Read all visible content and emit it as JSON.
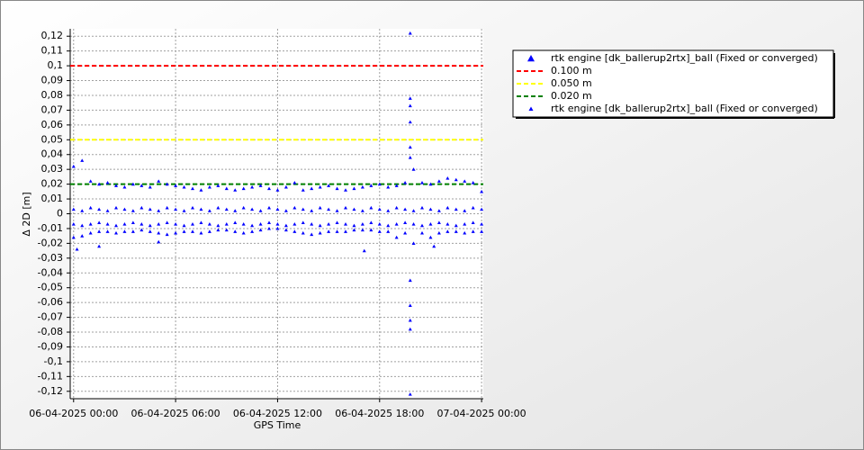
{
  "chart_data": {
    "type": "scatter",
    "xlabel": "GPS Time",
    "ylabel": "Δ 2D [m]",
    "xlim": [
      -0.2,
      24.1
    ],
    "ylim": [
      -0.125,
      0.125
    ],
    "xticks": [
      {
        "value": 0,
        "label": "06-04-2025 00:00"
      },
      {
        "value": 6,
        "label": "06-04-2025 06:00"
      },
      {
        "value": 12,
        "label": "06-04-2025 12:00"
      },
      {
        "value": 18,
        "label": "06-04-2025 18:00"
      },
      {
        "value": 24,
        "label": "07-04-2025 00:00"
      }
    ],
    "yticks": [
      {
        "value": -0.12,
        "label": "-0,12"
      },
      {
        "value": -0.11,
        "label": "-0,11"
      },
      {
        "value": -0.1,
        "label": "-0,1"
      },
      {
        "value": -0.09,
        "label": "-0,09"
      },
      {
        "value": -0.08,
        "label": "-0,08"
      },
      {
        "value": -0.07,
        "label": "-0,07"
      },
      {
        "value": -0.06,
        "label": "-0,06"
      },
      {
        "value": -0.05,
        "label": "-0,05"
      },
      {
        "value": -0.04,
        "label": "-0,04"
      },
      {
        "value": -0.03,
        "label": "-0,03"
      },
      {
        "value": -0.02,
        "label": "-0,02"
      },
      {
        "value": -0.01,
        "label": "-0,01"
      },
      0,
      {
        "value": 0.01,
        "label": "0,01"
      },
      {
        "value": 0.02,
        "label": "0,02"
      },
      {
        "value": 0.03,
        "label": "0,03"
      },
      {
        "value": 0.04,
        "label": "0,04"
      },
      {
        "value": 0.05,
        "label": "0,05"
      },
      {
        "value": 0.06,
        "label": "0,06"
      },
      {
        "value": 0.07,
        "label": "0,07"
      },
      {
        "value": 0.08,
        "label": "0,08"
      },
      {
        "value": 0.09,
        "label": "0,09"
      },
      {
        "value": 0.1,
        "label": "0,1"
      },
      {
        "value": 0.11,
        "label": "0,11"
      },
      {
        "value": 0.12,
        "label": "0,12"
      }
    ],
    "grid": true,
    "series": [
      {
        "name": "rtk engine [dk_ballerup2rtx]_ball (Fixed or converged)",
        "color": "#0000ff",
        "x": [
          0,
          0,
          0.5,
          0.5,
          1,
          1,
          1.5,
          1.5,
          2,
          2,
          2.5,
          2.5,
          3,
          3,
          3.5,
          3.5,
          4,
          4,
          4.5,
          4.5,
          5,
          5,
          5.5,
          5.5,
          6,
          6,
          6.5,
          6.5,
          7,
          7,
          7.5,
          7.5,
          8,
          8,
          8.5,
          8.5,
          9,
          9,
          9.5,
          9.5,
          10,
          10,
          10.5,
          10.5,
          11,
          11,
          11.5,
          11.5,
          12,
          12,
          12.5,
          12.5,
          13,
          13,
          13.5,
          13.5,
          14,
          14,
          14.5,
          14.5,
          15,
          15,
          15.5,
          15.5,
          16,
          16,
          16.5,
          16.5,
          17,
          17,
          17.5,
          17.5,
          18,
          18,
          18.5,
          18.5,
          19,
          19,
          19.5,
          19.5,
          20,
          20,
          20.5,
          20.5,
          21,
          21,
          21.5,
          21.5,
          22,
          22,
          22.5,
          22.5,
          23,
          23,
          23.5,
          23.5,
          24,
          24,
          19.8,
          19.8,
          19.8,
          19.8,
          19.8,
          19.8
        ],
        "values": [
          0.032,
          0.003,
          0.036,
          0.002,
          0.022,
          0.004,
          0.02,
          0.003,
          0.021,
          0.002,
          0.019,
          0.004,
          0.018,
          0.003,
          0.02,
          0.002,
          0.019,
          0.004,
          0.018,
          0.003,
          0.022,
          0.002,
          0.02,
          0.004,
          0.019,
          0.003,
          0.018,
          0.002,
          0.017,
          0.004,
          0.016,
          0.003,
          0.018,
          0.002,
          0.019,
          0.004,
          0.017,
          0.003,
          0.016,
          0.002,
          0.017,
          0.004,
          0.018,
          0.003,
          0.019,
          0.002,
          0.017,
          0.004,
          0.016,
          0.003,
          0.018,
          0.002,
          0.021,
          0.004,
          0.016,
          0.003,
          0.017,
          0.002,
          0.018,
          0.004,
          0.019,
          0.003,
          0.017,
          0.002,
          0.016,
          0.004,
          0.017,
          0.003,
          0.018,
          0.002,
          0.019,
          0.004,
          0.02,
          0.003,
          0.018,
          0.002,
          0.019,
          0.004,
          0.021,
          0.003,
          0.03,
          0.002,
          0.021,
          0.004,
          0.02,
          0.003,
          0.022,
          0.002,
          0.024,
          0.004,
          0.023,
          0.003,
          0.022,
          0.002,
          0.021,
          0.004,
          0.015,
          0.003,
          0.122,
          0.078,
          0.073,
          0.062,
          0.045,
          0.038
        ]
      },
      {
        "name": "rtk engine [dk_ballerup2rtx]_ball (Fixed or converged)",
        "color": "#0000ff",
        "x": [
          0,
          0,
          0.5,
          0.5,
          1,
          1,
          1.5,
          1.5,
          2,
          2,
          2.5,
          2.5,
          3,
          3,
          3.5,
          3.5,
          4,
          4,
          4.5,
          4.5,
          5,
          5,
          5.5,
          5.5,
          6,
          6,
          6.5,
          6.5,
          7,
          7,
          7.5,
          7.5,
          8,
          8,
          8.5,
          8.5,
          9,
          9,
          9.5,
          9.5,
          10,
          10,
          10.5,
          10.5,
          11,
          11,
          11.5,
          11.5,
          12,
          12,
          12.5,
          12.5,
          13,
          13,
          13.5,
          13.5,
          14,
          14,
          14.5,
          14.5,
          15,
          15,
          15.5,
          15.5,
          16,
          16,
          16.5,
          16.5,
          17,
          17,
          17.5,
          17.5,
          18,
          18,
          18.5,
          18.5,
          19,
          19,
          19.5,
          19.5,
          20,
          20,
          20.5,
          20.5,
          21,
          21,
          21.5,
          21.5,
          22,
          22,
          22.5,
          22.5,
          23,
          23,
          23.5,
          23.5,
          24,
          24,
          0.2,
          1.5,
          5,
          17.1,
          19.8,
          19.8,
          19.8,
          19.8,
          19.8,
          21.2
        ],
        "values": [
          -0.016,
          -0.007,
          -0.015,
          -0.008,
          -0.013,
          -0.007,
          -0.012,
          -0.006,
          -0.012,
          -0.007,
          -0.013,
          -0.008,
          -0.012,
          -0.007,
          -0.012,
          -0.006,
          -0.011,
          -0.007,
          -0.012,
          -0.008,
          -0.013,
          -0.007,
          -0.014,
          -0.006,
          -0.013,
          -0.007,
          -0.012,
          -0.008,
          -0.012,
          -0.007,
          -0.013,
          -0.006,
          -0.012,
          -0.007,
          -0.011,
          -0.008,
          -0.011,
          -0.007,
          -0.012,
          -0.006,
          -0.013,
          -0.007,
          -0.012,
          -0.008,
          -0.011,
          -0.007,
          -0.01,
          -0.006,
          -0.01,
          -0.007,
          -0.011,
          -0.008,
          -0.012,
          -0.007,
          -0.013,
          -0.006,
          -0.014,
          -0.007,
          -0.013,
          -0.008,
          -0.012,
          -0.007,
          -0.012,
          -0.006,
          -0.012,
          -0.007,
          -0.011,
          -0.008,
          -0.011,
          -0.007,
          -0.011,
          -0.006,
          -0.012,
          -0.007,
          -0.012,
          -0.008,
          -0.016,
          -0.007,
          -0.013,
          -0.006,
          -0.02,
          -0.007,
          -0.013,
          -0.008,
          -0.016,
          -0.007,
          -0.013,
          -0.006,
          -0.012,
          -0.007,
          -0.012,
          -0.008,
          -0.013,
          -0.007,
          -0.012,
          -0.006,
          -0.012,
          -0.007,
          -0.024,
          -0.022,
          -0.019,
          -0.025,
          -0.045,
          -0.062,
          -0.072,
          -0.078,
          -0.122,
          -0.022
        ]
      }
    ],
    "hlines": [
      {
        "name": "0.100 m",
        "value": 0.1,
        "color": "#ff0000"
      },
      {
        "name": "0.050 m",
        "value": 0.05,
        "color": "#ffff00"
      },
      {
        "name": "0.020 m",
        "value": 0.02,
        "color": "#008000"
      }
    ]
  }
}
